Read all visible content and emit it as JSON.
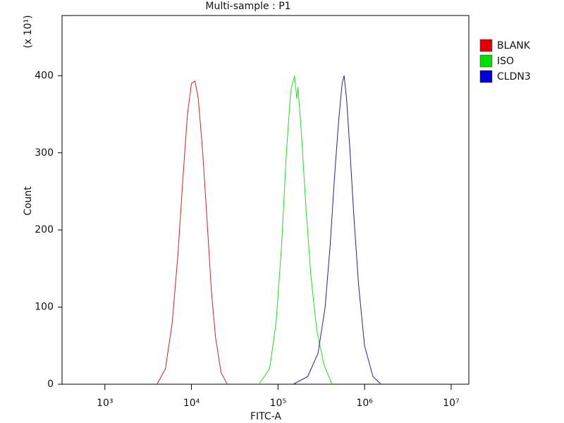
{
  "chart_data": {
    "type": "histogram-line",
    "title": "Multi-sample : P1",
    "x_label": "FITC-A",
    "y_label": "Count",
    "y_multiplier_label": "(x 10¹)",
    "x_log": true,
    "xlim": [
      320,
      16000000
    ],
    "ylim": [
      0,
      478
    ],
    "xticks": [
      {
        "value": 1000,
        "label": "10³"
      },
      {
        "value": 10000,
        "label": "10⁴"
      },
      {
        "value": 100000,
        "label": "10⁵"
      },
      {
        "value": 1000000,
        "label": "10⁶"
      },
      {
        "value": 10000000,
        "label": "10⁷"
      }
    ],
    "yticks": [
      0,
      100,
      200,
      300,
      400
    ],
    "legend_position": "right",
    "series": [
      {
        "name": "BLANK",
        "color": "#d42020",
        "legend_color": "#e00000",
        "x": [
          4000,
          5000,
          6000,
          7000,
          8000,
          9000,
          10000,
          11000,
          12000,
          13500,
          15000,
          17000,
          19000,
          22000,
          26000
        ],
        "values": [
          0,
          20,
          80,
          170,
          270,
          350,
          390,
          393,
          370,
          300,
          220,
          120,
          60,
          15,
          0
        ]
      },
      {
        "name": "ISO",
        "color": "#22dd22",
        "legend_color": "#00e000",
        "x": [
          60000,
          80000,
          95000,
          110000,
          125000,
          140000,
          155000,
          165000,
          170000,
          185000,
          210000,
          240000,
          280000,
          340000,
          420000
        ],
        "values": [
          0,
          20,
          80,
          180,
          300,
          380,
          400,
          370,
          385,
          330,
          230,
          140,
          70,
          25,
          0
        ]
      },
      {
        "name": "CLDN3",
        "color": "#23238f",
        "legend_color": "#0000d0",
        "x": [
          150000,
          220000,
          290000,
          350000,
          400000,
          450000,
          500000,
          550000,
          580000,
          620000,
          680000,
          750000,
          850000,
          1000000,
          1250000,
          1550000
        ],
        "values": [
          0,
          10,
          40,
          100,
          180,
          270,
          340,
          390,
          400,
          370,
          300,
          220,
          130,
          50,
          10,
          0
        ]
      }
    ]
  }
}
